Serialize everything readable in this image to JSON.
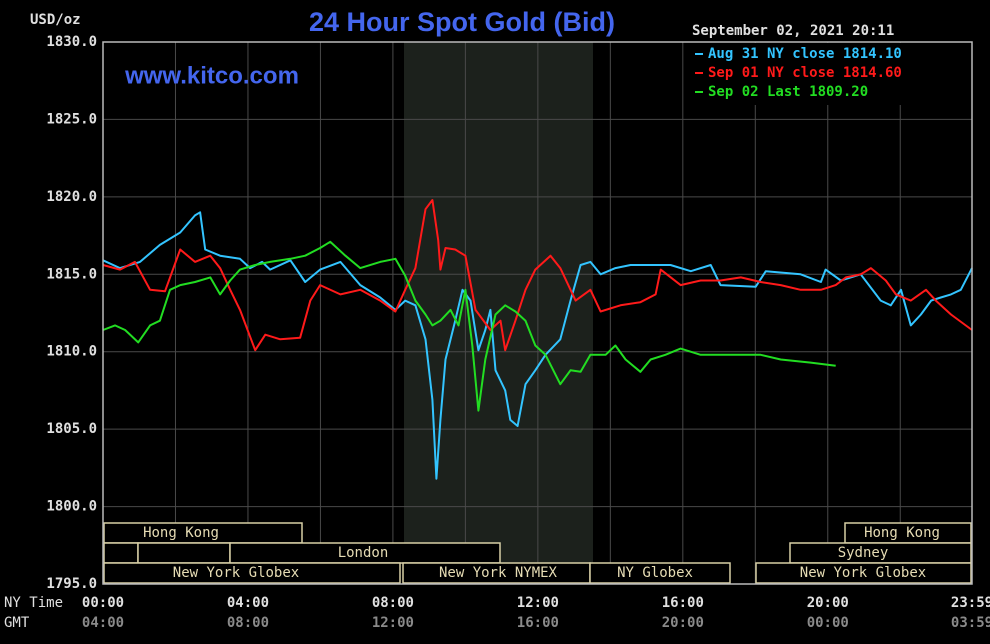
{
  "chart_data": {
    "type": "line",
    "title": "24 Hour Spot Gold (Bid)",
    "subtitle": "September 02, 2021 20:11",
    "annotation": "www.kitco.com",
    "y_label": "USD/oz",
    "x_label": "NY Time",
    "x2_label": "GMT",
    "xlim": [
      0,
      23.98
    ],
    "ylim": [
      1795,
      1830
    ],
    "yticks": [
      {
        "value": 1795,
        "label": "1795.0"
      },
      {
        "value": 1800,
        "label": "1800.0"
      },
      {
        "value": 1805,
        "label": "1805.0"
      },
      {
        "value": 1810,
        "label": "1810.0"
      },
      {
        "value": 1815,
        "label": "1815.0"
      },
      {
        "value": 1820,
        "label": "1820.0"
      },
      {
        "value": 1825,
        "label": "1825.0"
      },
      {
        "value": 1830,
        "label": "1830.0"
      }
    ],
    "xticks": [
      {
        "value": 0,
        "label": "00:00"
      },
      {
        "value": 4,
        "label": "04:00"
      },
      {
        "value": 8,
        "label": "08:00"
      },
      {
        "value": 12,
        "label": "12:00"
      },
      {
        "value": 16,
        "label": "16:00"
      },
      {
        "value": 20,
        "label": "20:00"
      },
      {
        "value": 23.98,
        "label": "23:59"
      }
    ],
    "x2ticks": [
      {
        "value": 0,
        "label": "04:00"
      },
      {
        "value": 4,
        "label": "08:00"
      },
      {
        "value": 8,
        "label": "12:00"
      },
      {
        "value": 12,
        "label": "16:00"
      },
      {
        "value": 16,
        "label": "20:00"
      },
      {
        "value": 20,
        "label": "00:00"
      },
      {
        "value": 23.98,
        "label": "03:59"
      }
    ],
    "minor_xticks": [
      2,
      6,
      10,
      14,
      18,
      22
    ],
    "grid": true,
    "sessions": [
      "Hong Kong",
      "London",
      "New York Globex",
      "New York NYMEX",
      "NY Globex",
      "Hong Kong",
      "Sydney",
      "New York Globex"
    ],
    "series": [
      {
        "name": "Aug 31 NY close 1814.10",
        "color": "#33c4ff",
        "x": [
          0,
          0.47,
          1.02,
          1.57,
          2.13,
          2.54,
          2.68,
          2.82,
          3.23,
          3.78,
          4.06,
          4.39,
          4.61,
          5.17,
          5.58,
          5.99,
          6.55,
          7.1,
          7.65,
          8.07,
          8.34,
          8.62,
          8.9,
          9.09,
          9.2,
          9.31,
          9.45,
          9.72,
          9.92,
          10.14,
          10.36,
          10.55,
          10.69,
          10.83,
          11.1,
          11.24,
          11.44,
          11.66,
          11.93,
          12.21,
          12.62,
          12.9,
          13.18,
          13.45,
          13.73,
          14.14,
          14.56,
          15.11,
          15.66,
          16.22,
          16.77,
          17.04,
          18.01,
          18.29,
          19.25,
          19.81,
          19.94,
          20.36,
          20.91,
          21.46,
          21.74,
          22.02,
          22.29,
          22.57,
          22.85,
          23.12,
          23.4,
          23.67,
          23.98
        ],
        "values": [
          1815.9,
          1815.4,
          1815.8,
          1816.9,
          1817.7,
          1818.8,
          1819.0,
          1816.6,
          1816.2,
          1816.0,
          1815.4,
          1815.8,
          1815.3,
          1815.9,
          1814.5,
          1815.3,
          1815.8,
          1814.3,
          1813.5,
          1812.7,
          1813.3,
          1813.0,
          1810.8,
          1806.9,
          1801.8,
          1805.6,
          1809.5,
          1812.0,
          1814.0,
          1813.3,
          1810.1,
          1811.4,
          1812.7,
          1808.8,
          1807.5,
          1805.6,
          1805.2,
          1807.9,
          1808.8,
          1809.8,
          1810.8,
          1813.3,
          1815.6,
          1815.8,
          1815.0,
          1815.4,
          1815.6,
          1815.6,
          1815.6,
          1815.2,
          1815.6,
          1814.3,
          1814.2,
          1815.2,
          1815.0,
          1814.5,
          1815.3,
          1814.6,
          1815.0,
          1813.3,
          1813.0,
          1814.0,
          1811.7,
          1812.4,
          1813.3,
          1813.5,
          1813.7,
          1814.0,
          1815.4
        ]
      },
      {
        "name": "Sep 01 NY close 1814.60",
        "color": "#ff1a1a",
        "x": [
          0,
          0.47,
          0.88,
          1.3,
          1.71,
          2.13,
          2.54,
          2.96,
          3.23,
          3.51,
          3.78,
          4.2,
          4.48,
          4.89,
          5.44,
          5.72,
          5.99,
          6.55,
          7.1,
          7.65,
          8.07,
          8.34,
          8.62,
          8.9,
          9.09,
          9.25,
          9.31,
          9.45,
          9.72,
          10.0,
          10.28,
          10.69,
          10.97,
          11.1,
          11.38,
          11.66,
          11.93,
          12.35,
          12.62,
          13.04,
          13.45,
          13.73,
          14.28,
          14.83,
          15.25,
          15.39,
          15.94,
          16.49,
          17.04,
          17.6,
          18.15,
          18.7,
          19.25,
          19.81,
          20.22,
          20.5,
          20.91,
          21.19,
          21.6,
          21.88,
          22.29,
          22.71,
          22.98,
          23.4,
          23.98
        ],
        "values": [
          1815.6,
          1815.3,
          1815.8,
          1814.0,
          1813.9,
          1816.6,
          1815.8,
          1816.2,
          1815.4,
          1814.0,
          1812.7,
          1810.1,
          1811.1,
          1810.8,
          1810.9,
          1813.3,
          1814.3,
          1813.7,
          1814.0,
          1813.3,
          1812.6,
          1814.0,
          1815.4,
          1819.2,
          1819.8,
          1817.2,
          1815.3,
          1816.7,
          1816.6,
          1816.2,
          1812.7,
          1811.4,
          1812.0,
          1810.1,
          1812.0,
          1814.0,
          1815.3,
          1816.2,
          1815.4,
          1813.3,
          1814.0,
          1812.6,
          1813.0,
          1813.2,
          1813.7,
          1815.3,
          1814.3,
          1814.6,
          1814.6,
          1814.8,
          1814.5,
          1814.3,
          1814.0,
          1814.0,
          1814.3,
          1814.8,
          1815.0,
          1815.4,
          1814.6,
          1813.7,
          1813.3,
          1814.0,
          1813.3,
          1812.4,
          1811.4
        ]
      },
      {
        "name": "Sep 02 Last 1809.20",
        "color": "#22dd22",
        "x": [
          0,
          0.33,
          0.61,
          0.97,
          1.3,
          1.57,
          1.85,
          2.13,
          2.54,
          2.96,
          3.23,
          3.51,
          3.78,
          4.2,
          4.61,
          5.17,
          5.58,
          5.99,
          6.27,
          6.69,
          7.1,
          7.65,
          8.07,
          8.34,
          8.62,
          8.9,
          9.09,
          9.31,
          9.59,
          9.81,
          10.0,
          10.19,
          10.36,
          10.55,
          10.83,
          11.1,
          11.38,
          11.66,
          11.93,
          12.21,
          12.62,
          12.9,
          13.18,
          13.45,
          13.87,
          14.14,
          14.42,
          14.83,
          15.11,
          15.52,
          15.94,
          16.49,
          17.04,
          18.15,
          18.7,
          19.53,
          20.22
        ],
        "values": [
          1811.4,
          1811.7,
          1811.4,
          1810.6,
          1811.7,
          1812.0,
          1814.0,
          1814.3,
          1814.5,
          1814.8,
          1813.7,
          1814.6,
          1815.3,
          1815.6,
          1815.8,
          1816.0,
          1816.2,
          1816.7,
          1817.1,
          1816.2,
          1815.4,
          1815.8,
          1816.0,
          1814.9,
          1813.3,
          1812.4,
          1811.7,
          1812.0,
          1812.7,
          1811.7,
          1814.0,
          1810.4,
          1806.2,
          1809.5,
          1812.4,
          1813.0,
          1812.6,
          1812.0,
          1810.4,
          1809.8,
          1807.9,
          1808.8,
          1808.7,
          1809.8,
          1809.8,
          1810.4,
          1809.5,
          1808.7,
          1809.5,
          1809.8,
          1810.2,
          1809.8,
          1809.8,
          1809.8,
          1809.5,
          1809.3,
          1809.1
        ]
      }
    ]
  }
}
